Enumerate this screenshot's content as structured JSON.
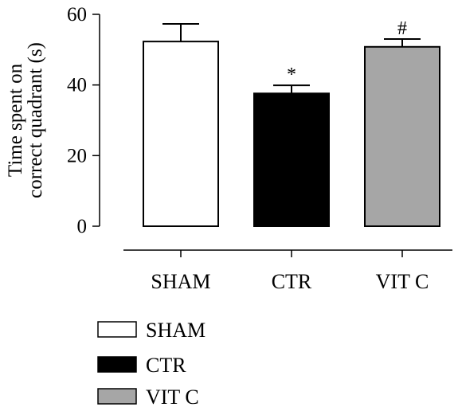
{
  "chart_data": {
    "type": "bar",
    "title": "",
    "ylabel_lines": [
      "Time spent on",
      "correct quadrant (s)"
    ],
    "xlabel": "",
    "ylim": [
      0,
      60
    ],
    "yticks": [
      0,
      20,
      40,
      60
    ],
    "categories": [
      "SHAM",
      "CTR",
      "VIT C"
    ],
    "values": [
      52.3,
      37.6,
      50.8
    ],
    "errors": [
      5.0,
      2.3,
      2.2
    ],
    "significance": [
      "",
      "*",
      "#"
    ],
    "colors": [
      "#ffffff",
      "#000000",
      "#a6a6a6"
    ],
    "legend": {
      "placement": "bottom-left",
      "entries": [
        {
          "label": "SHAM",
          "color": "#ffffff"
        },
        {
          "label": "CTR",
          "color": "#000000"
        },
        {
          "label": "VIT C",
          "color": "#a6a6a6"
        }
      ]
    },
    "grid": false
  }
}
